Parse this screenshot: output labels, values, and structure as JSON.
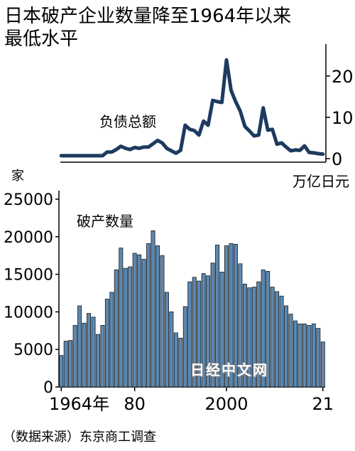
{
  "title_line1": "日本破产企业数量降至1964年以来",
  "title_line2": "最低水平",
  "source": "（数据来源）东京商工调查",
  "watermark": "日经中文网",
  "colors": {
    "line": "#1d3a5f",
    "bar_fill": "#5b89b2",
    "bar_stroke": "#1a1a1a"
  },
  "chart_data": [
    {
      "type": "line",
      "label": "负债总额",
      "unit_label": "万亿日元",
      "y_axis_position": "right",
      "ylim": [
        0,
        26
      ],
      "y_ticks": [
        0,
        10,
        20
      ],
      "x": [
        1964,
        1965,
        1966,
        1967,
        1968,
        1969,
        1970,
        1971,
        1972,
        1973,
        1974,
        1975,
        1976,
        1977,
        1978,
        1979,
        1980,
        1981,
        1982,
        1983,
        1984,
        1985,
        1986,
        1987,
        1988,
        1989,
        1990,
        1991,
        1992,
        1993,
        1994,
        1995,
        1996,
        1997,
        1998,
        1999,
        2000,
        2001,
        2002,
        2003,
        2004,
        2005,
        2006,
        2007,
        2008,
        2009,
        2010,
        2011,
        2012,
        2013,
        2014,
        2015,
        2016,
        2017,
        2018,
        2019,
        2020,
        2021
      ],
      "values": [
        0.7,
        0.7,
        0.7,
        0.7,
        0.7,
        0.7,
        0.7,
        0.7,
        0.7,
        0.7,
        1.6,
        1.6,
        2.2,
        3.0,
        2.5,
        2.2,
        2.7,
        2.5,
        2.8,
        2.8,
        3.6,
        4.4,
        3.8,
        2.5,
        1.9,
        1.3,
        2.0,
        8.1,
        7.1,
        6.8,
        5.7,
        9.1,
        8.1,
        14.1,
        13.8,
        13.6,
        23.9,
        16.5,
        13.8,
        11.5,
        7.8,
        6.7,
        5.5,
        5.7,
        12.3,
        6.9,
        7.1,
        3.5,
        3.8,
        2.8,
        1.9,
        2.1,
        2.0,
        3.1,
        1.5,
        1.4,
        1.2,
        1.1
      ]
    },
    {
      "type": "bar",
      "label": "破产数量",
      "unit_label": "家",
      "y_axis_position": "left",
      "ylim": [
        0,
        25000
      ],
      "y_ticks": [
        0,
        5000,
        10000,
        15000,
        20000,
        25000
      ],
      "x_tick_labels": [
        "1964年",
        "80",
        "2000",
        "21"
      ],
      "x_tick_years": [
        1964,
        1980,
        2000,
        2021
      ],
      "x": [
        1964,
        1965,
        1966,
        1967,
        1968,
        1969,
        1970,
        1971,
        1972,
        1973,
        1974,
        1975,
        1976,
        1977,
        1978,
        1979,
        1980,
        1981,
        1982,
        1983,
        1984,
        1985,
        1986,
        1987,
        1988,
        1989,
        1990,
        1991,
        1992,
        1993,
        1994,
        1995,
        1996,
        1997,
        1998,
        1999,
        2000,
        2001,
        2002,
        2003,
        2004,
        2005,
        2006,
        2007,
        2008,
        2009,
        2010,
        2011,
        2012,
        2013,
        2014,
        2015,
        2016,
        2017,
        2018,
        2019,
        2020,
        2021
      ],
      "values": [
        4200,
        6100,
        6200,
        8200,
        10800,
        8500,
        9800,
        9300,
        7000,
        8200,
        11700,
        12600,
        15600,
        18500,
        15800,
        16000,
        17800,
        17600,
        17000,
        19100,
        20800,
        18800,
        17500,
        12600,
        10000,
        7200,
        6500,
        10700,
        14000,
        14600,
        14100,
        15100,
        14800,
        16500,
        18900,
        15300,
        18800,
        19100,
        19000,
        16400,
        13700,
        13200,
        13300,
        14000,
        15600,
        15400,
        13300,
        12700,
        12100,
        10800,
        9700,
        8800,
        8400,
        8400,
        8200,
        8400,
        7800,
        6000
      ]
    }
  ]
}
